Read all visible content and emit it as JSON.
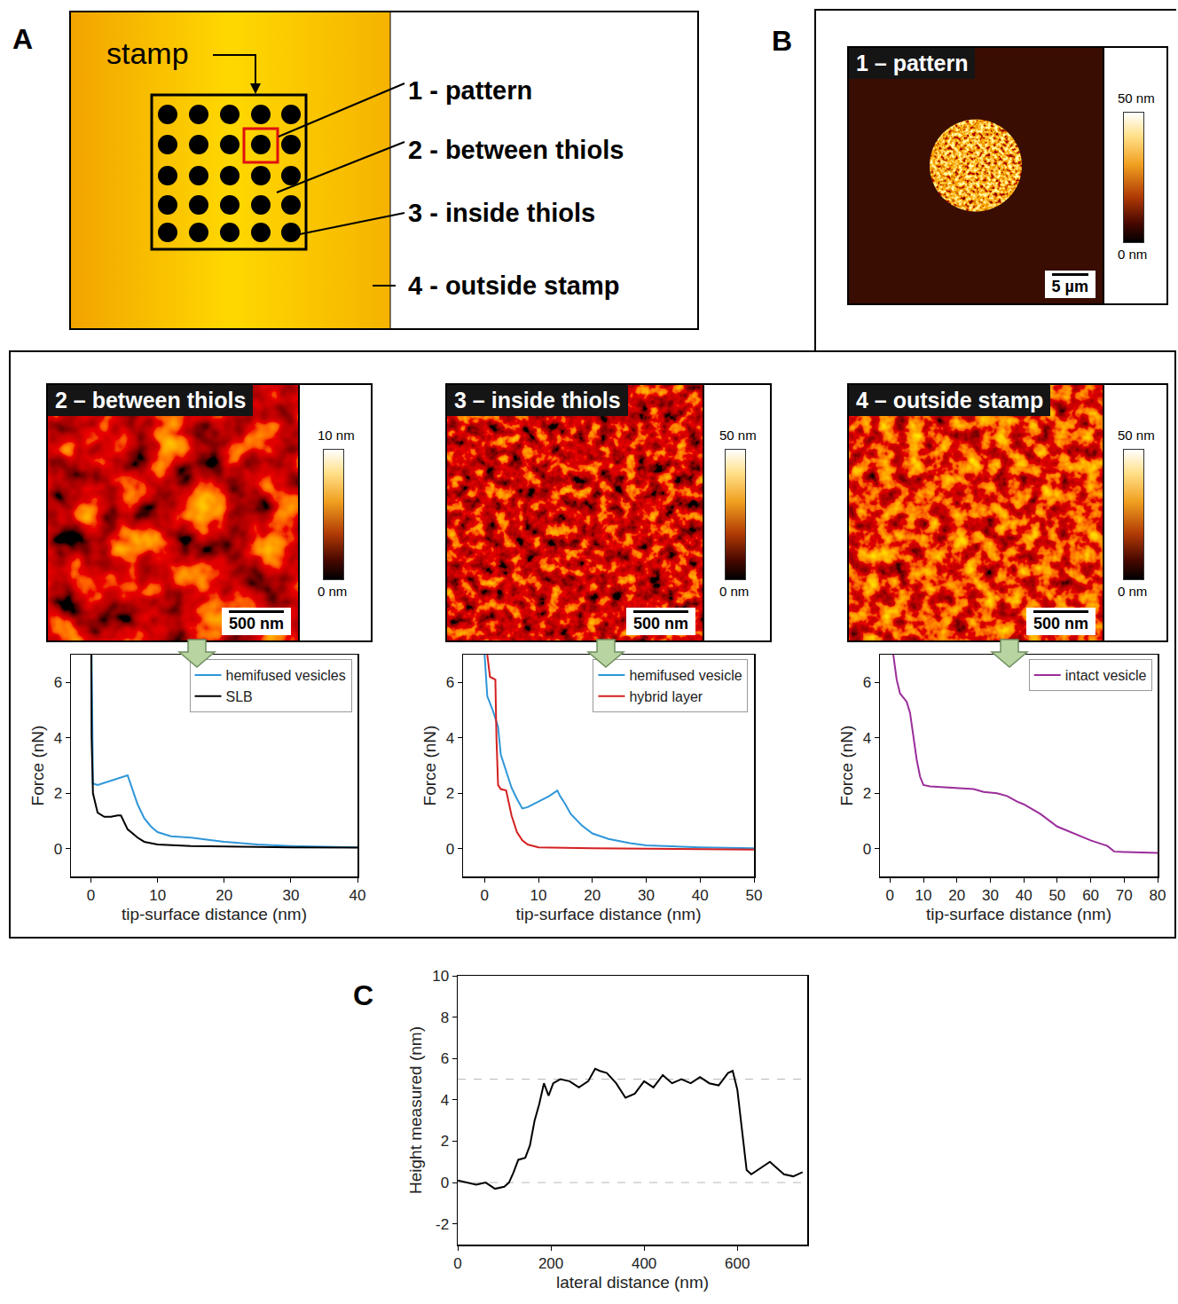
{
  "figure": {
    "panel_letters": [
      "A",
      "B",
      "C"
    ],
    "diagram": {
      "stamp_label": "stamp",
      "regions": [
        "1 - pattern",
        "2 - between thiols",
        "3 - inside thiols",
        "4 - outside stamp"
      ]
    },
    "afm_images": [
      {
        "title": "1 – pattern",
        "scale_bar": "5 µm",
        "colorbar": {
          "range": [
            0,
            50
          ],
          "ticks": [
            {
              "value": 50,
              "label": "50 nm"
            },
            {
              "value": 0,
              "label": "0 nm"
            }
          ]
        }
      },
      {
        "title": "2 – between thiols",
        "scale_bar": "500 nm",
        "colorbar": {
          "range": [
            0,
            10
          ],
          "ticks": [
            {
              "value": 10,
              "label": "10 nm"
            },
            {
              "value": 0,
              "label": "0 nm"
            }
          ]
        }
      },
      {
        "title": "3 – inside thiols",
        "scale_bar": "500 nm",
        "colorbar": {
          "range": [
            0,
            50
          ],
          "ticks": [
            {
              "value": 50,
              "label": "50 nm"
            },
            {
              "value": 0,
              "label": "0 nm"
            }
          ]
        }
      },
      {
        "title": "4 – outside stamp",
        "scale_bar": "500 nm",
        "colorbar": {
          "range": [
            0,
            50
          ],
          "ticks": [
            {
              "value": 50,
              "label": "50 nm"
            },
            {
              "value": 0,
              "label": "0 nm"
            }
          ]
        }
      }
    ]
  },
  "chart_data": [
    {
      "type": "line",
      "x_label": "tip-surface distance (nm)",
      "y_label": "Force (nN)",
      "xlim": [
        -3,
        40
      ],
      "ylim": [
        -1,
        7
      ],
      "xticks": [
        0,
        10,
        20,
        30,
        40
      ],
      "yticks": [
        0,
        2,
        4,
        6
      ],
      "legend": "upper right",
      "series": [
        {
          "name": "hemifused vesicles",
          "color": "#2f96d8",
          "x": [
            0.1,
            0.2,
            0.3,
            1,
            3,
            5,
            5.5,
            6,
            7,
            8,
            9,
            10,
            12,
            15,
            20,
            25,
            30,
            40
          ],
          "values": [
            7,
            3,
            2.35,
            2.3,
            2.45,
            2.6,
            2.65,
            2.3,
            1.6,
            1.1,
            0.8,
            0.6,
            0.45,
            0.4,
            0.25,
            0.15,
            0.1,
            0.05
          ]
        },
        {
          "name": "SLB",
          "color": "#000000",
          "x": [
            0.05,
            0.1,
            0.3,
            1,
            2,
            3,
            4,
            4.5,
            5.5,
            7,
            8,
            10,
            15,
            20,
            30,
            40
          ],
          "values": [
            7,
            4,
            2,
            1.3,
            1.15,
            1.15,
            1.2,
            1.2,
            0.7,
            0.4,
            0.25,
            0.15,
            0.1,
            0.08,
            0.05,
            0.04
          ]
        }
      ]
    },
    {
      "type": "line",
      "x_label": "tip-surface distance (nm)",
      "y_label": "Force (nN)",
      "xlim": [
        -4,
        50
      ],
      "ylim": [
        -1,
        7
      ],
      "xticks": [
        0,
        10,
        20,
        30,
        40,
        50
      ],
      "yticks": [
        0,
        2,
        4,
        6
      ],
      "legend": "upper right",
      "series": [
        {
          "name": "hemifused vesicle",
          "color": "#2f96d8",
          "x": [
            0,
            0.5,
            1.5,
            2.5,
            3,
            4,
            5,
            6,
            7,
            8,
            10,
            12,
            13.5,
            14,
            15,
            16,
            18,
            20,
            23,
            27,
            30,
            35,
            40,
            50
          ],
          "values": [
            7,
            5.5,
            5,
            4.4,
            3.4,
            2.8,
            2.2,
            1.8,
            1.45,
            1.5,
            1.7,
            1.9,
            2.1,
            1.9,
            1.6,
            1.25,
            0.85,
            0.55,
            0.35,
            0.2,
            0.12,
            0.08,
            0.05,
            0.02
          ]
        },
        {
          "name": "hybrid layer",
          "color": "#d42020",
          "x": [
            0.5,
            1,
            2,
            2.2,
            2.5,
            3,
            4,
            5,
            6,
            7,
            8,
            10,
            20,
            30,
            40,
            50
          ],
          "values": [
            7,
            6.2,
            6.1,
            4,
            2.3,
            2.15,
            2.1,
            1.2,
            0.6,
            0.3,
            0.15,
            0.05,
            0.02,
            0,
            -0.02,
            -0.03
          ]
        }
      ]
    },
    {
      "type": "line",
      "x_label": "tip-surface distance (nm)",
      "y_label": "Force (nN)",
      "xlim": [
        -3,
        80
      ],
      "ylim": [
        -1,
        7
      ],
      "xticks": [
        0,
        10,
        20,
        30,
        40,
        50,
        60,
        70,
        80
      ],
      "yticks": [
        0,
        2,
        4,
        6
      ],
      "legend": "upper right",
      "series": [
        {
          "name": "intact vesicle",
          "color": "#9b2d9b",
          "x": [
            1,
            2,
            3,
            5,
            6,
            7,
            8,
            9,
            10,
            12,
            20,
            25,
            28,
            32,
            35,
            38,
            40,
            45,
            50,
            55,
            60,
            65,
            67,
            70,
            80
          ],
          "values": [
            7,
            6.1,
            5.6,
            5.3,
            4.9,
            4,
            3.2,
            2.6,
            2.3,
            2.25,
            2.2,
            2.15,
            2.05,
            2,
            1.9,
            1.7,
            1.6,
            1.25,
            0.8,
            0.55,
            0.3,
            0.1,
            -0.1,
            -0.12,
            -0.15
          ]
        }
      ]
    },
    {
      "type": "line",
      "x_label": "lateral distance (nm)",
      "y_label": "Height measured (nm)",
      "xlim": [
        0,
        750
      ],
      "ylim": [
        -3,
        10
      ],
      "xticks": [
        0,
        200,
        400,
        600
      ],
      "yticks": [
        -2,
        0,
        2,
        4,
        6,
        8,
        10
      ],
      "reference_lines": [
        0,
        5
      ],
      "series": [
        {
          "color": "#000000",
          "x": [
            0,
            20,
            40,
            60,
            80,
            100,
            110,
            120,
            130,
            145,
            155,
            165,
            175,
            185,
            195,
            205,
            220,
            240,
            260,
            280,
            295,
            305,
            320,
            340,
            360,
            380,
            400,
            420,
            440,
            460,
            480,
            500,
            520,
            540,
            560,
            580,
            590,
            600,
            610,
            620,
            630,
            650,
            670,
            680,
            700,
            720,
            740
          ],
          "values": [
            0.1,
            0,
            -0.1,
            0,
            -0.3,
            -0.2,
            0,
            0.5,
            1.1,
            1.2,
            1.8,
            3,
            3.8,
            4.8,
            4.2,
            4.8,
            5,
            4.9,
            4.6,
            4.9,
            5.5,
            5.4,
            5.3,
            4.8,
            4.1,
            4.3,
            4.9,
            4.6,
            5.2,
            4.8,
            5,
            4.8,
            5.1,
            4.8,
            4.7,
            5.3,
            5.4,
            4.5,
            2.5,
            0.6,
            0.4,
            0.7,
            1,
            0.8,
            0.4,
            0.3,
            0.5
          ]
        }
      ]
    }
  ]
}
